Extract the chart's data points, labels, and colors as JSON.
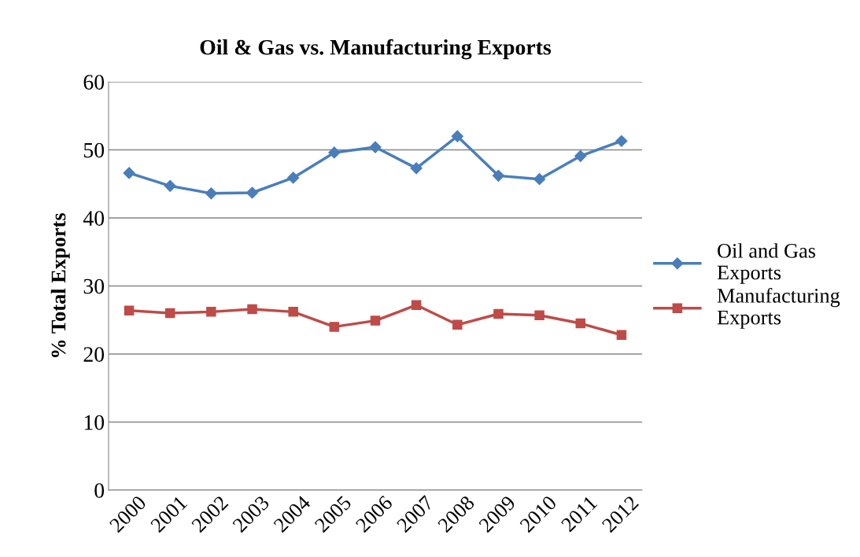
{
  "chart_data": {
    "type": "line",
    "title": "Oil & Gas vs. Manufacturing Exports",
    "ylabel": "% Total Exports",
    "categories": [
      "2000",
      "2001",
      "2002",
      "2003",
      "2004",
      "2005",
      "2006",
      "2007",
      "2008",
      "2009",
      "2010",
      "2011",
      "2012"
    ],
    "series": [
      {
        "name": "Oil and Gas Exports",
        "color": "#4a7ebb",
        "marker": "diamond",
        "values": [
          46.6,
          44.7,
          43.6,
          43.7,
          45.9,
          49.6,
          50.4,
          47.3,
          52.0,
          46.2,
          45.7,
          49.1,
          51.3
        ]
      },
      {
        "name": "Manufacturing Exports",
        "color": "#be4b48",
        "marker": "square",
        "values": [
          26.4,
          26.0,
          26.2,
          26.6,
          26.2,
          24.0,
          24.9,
          27.2,
          24.3,
          25.9,
          25.7,
          24.5,
          22.8
        ]
      }
    ],
    "ylim": [
      0,
      60
    ],
    "yticks": [
      0,
      10,
      20,
      30,
      40,
      50,
      60
    ],
    "grid": "y",
    "legend": "right",
    "line_style": "solid"
  }
}
